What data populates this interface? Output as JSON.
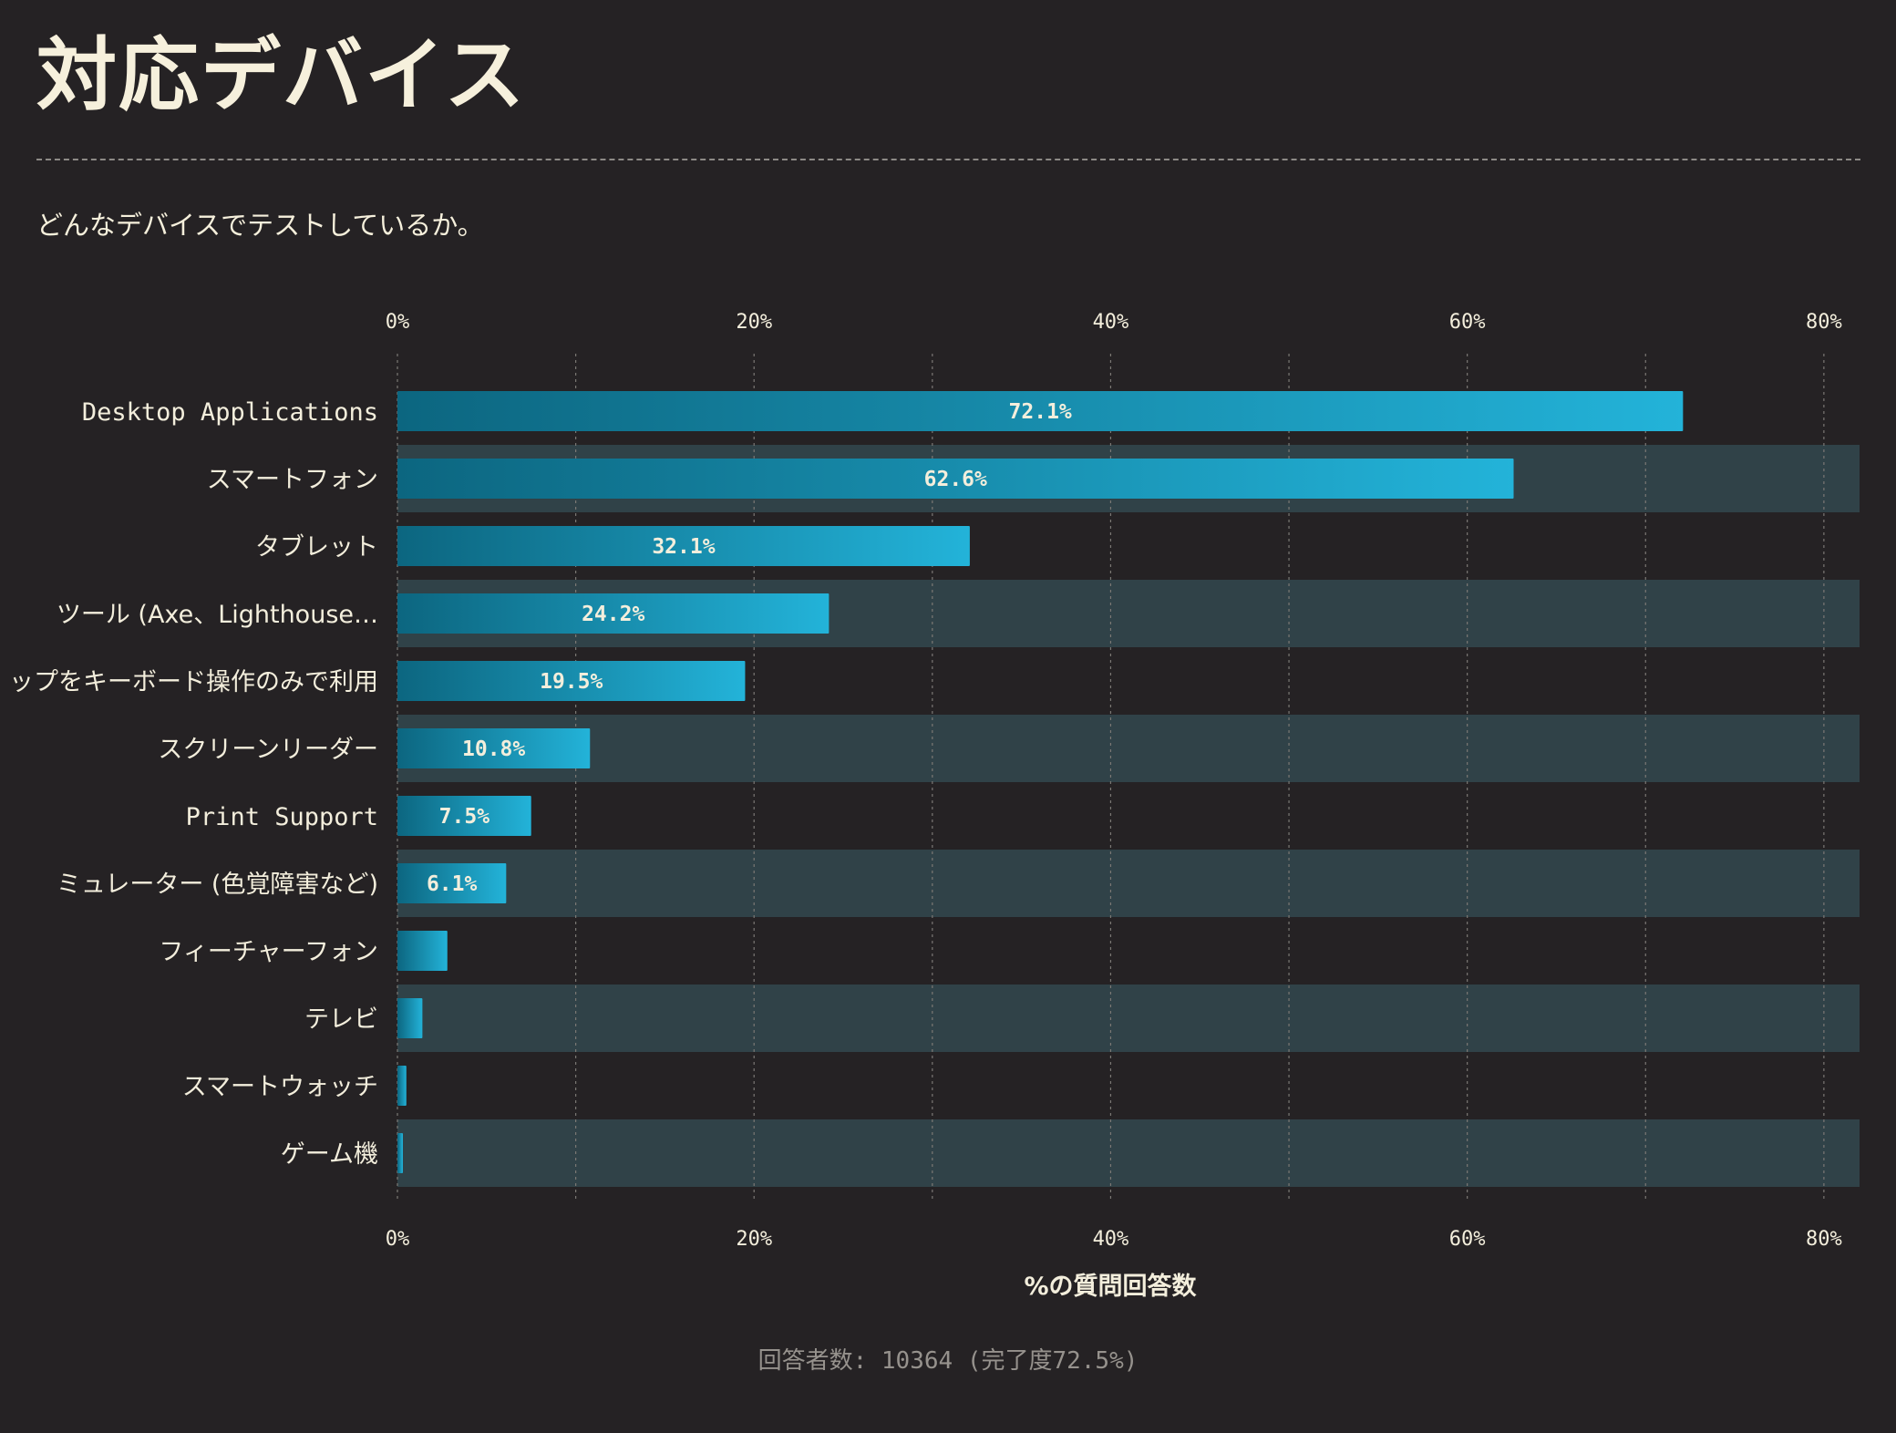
{
  "title": "対応デバイス",
  "subtitle": "どんなデバイスでテストしているか。",
  "footnote": "回答者数: 10364 (完了度72.5%)",
  "chart_data": {
    "type": "bar",
    "orientation": "horizontal",
    "title": "対応デバイス",
    "xlabel": "%の質問回答数",
    "ylabel": "",
    "xlim": [
      0,
      82
    ],
    "xticks": [
      "0%",
      "20%",
      "40%",
      "60%",
      "80%"
    ],
    "categories": [
      "Desktop Applications",
      "スマートフォン",
      "タブレット",
      "ツール (Axe、Lighthouse…",
      "ップをキーボード操作のみで利用",
      "スクリーンリーダー",
      "Print Support",
      "ミュレーター (色覚障害など)",
      "フィーチャーフォン",
      "テレビ",
      "スマートウォッチ",
      "ゲーム機"
    ],
    "values": [
      72.1,
      62.6,
      32.1,
      24.2,
      19.5,
      10.8,
      7.5,
      6.1,
      2.8,
      1.4,
      0.5,
      0.3
    ],
    "value_labels": [
      "72.1%",
      "62.6%",
      "32.1%",
      "24.2%",
      "19.5%",
      "10.8%",
      "7.5%",
      "6.1%",
      "",
      "",
      "",
      ""
    ],
    "grid": true,
    "colors": {
      "bar_start": "#0c6680",
      "bar_end": "#23b3d9",
      "band": "#304248",
      "grid": "#7b7874"
    }
  }
}
